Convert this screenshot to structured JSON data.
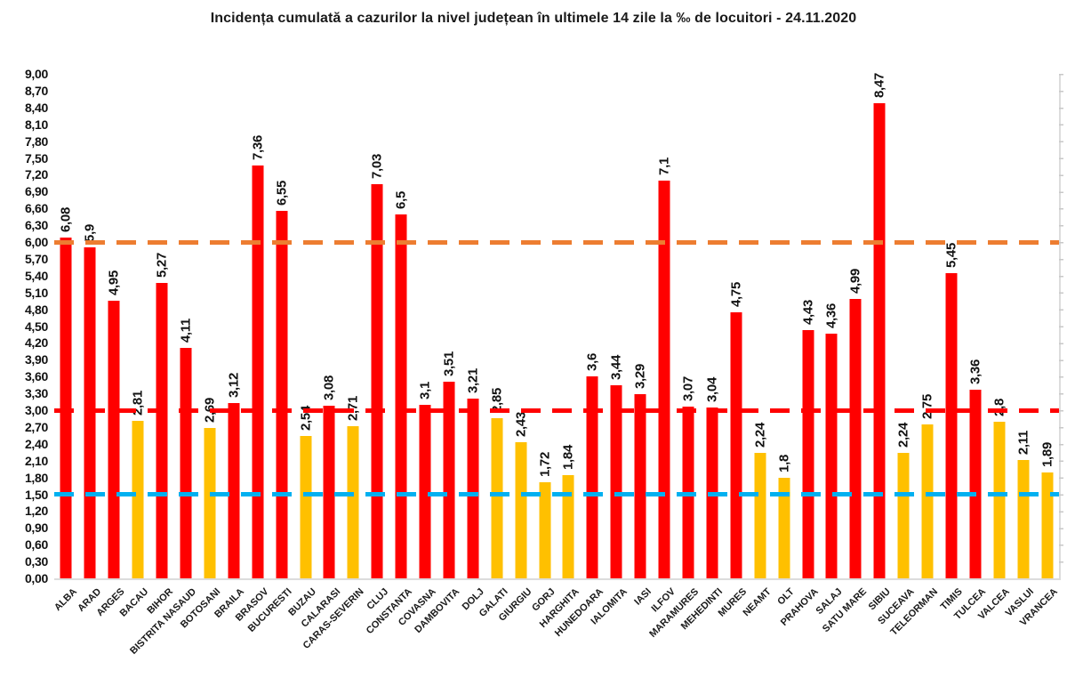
{
  "title": "Incidența cumulată a cazurilor la nivel județean în ultimele 14 zile la ‰ de locuitori - 24.11.2020",
  "chart_data": {
    "type": "bar",
    "title": "Incidența cumulată a cazurilor la nivel județean în ultimele 14 zile la ‰ de locuitori - 24.11.2020",
    "xlabel": "",
    "ylabel": "",
    "ylim": [
      0,
      9
    ],
    "ytick_step": 0.3,
    "yticks": [
      "9,00",
      "8,70",
      "8,40",
      "8,10",
      "7,80",
      "7,50",
      "7,20",
      "6,90",
      "6,60",
      "6,30",
      "6,00",
      "5,70",
      "5,40",
      "5,10",
      "4,80",
      "4,50",
      "4,20",
      "3,90",
      "3,60",
      "3,30",
      "3,00",
      "2,70",
      "2,40",
      "2,10",
      "1,80",
      "1,50",
      "1,20",
      "0,90",
      "0,60",
      "0,30",
      "0,00"
    ],
    "grid": false,
    "legend": false,
    "value_label_rotation": 90,
    "category_label_rotation": 45,
    "colors": {
      "red_zone_bar": "#FF0000",
      "yellow_zone_bar": "#FFC000",
      "threshold_6": "#ED7D31",
      "threshold_3": "#FF0000",
      "threshold_1_5": "#00B0F0",
      "axis_line": "#dcdcdc",
      "text": "#111111"
    },
    "reference_lines": [
      {
        "value": 6.0,
        "color": "#ED7D31",
        "name": "threshold-6"
      },
      {
        "value": 3.0,
        "color": "#FF0000",
        "name": "threshold-3"
      },
      {
        "value": 1.5,
        "color": "#00B0F0",
        "name": "threshold-1.5"
      }
    ],
    "bars": [
      {
        "county": "ALBA",
        "value": 6.08,
        "label": "6,08",
        "zone": "red"
      },
      {
        "county": "ARAD",
        "value": 5.9,
        "label": "5,9",
        "zone": "red"
      },
      {
        "county": "ARGES",
        "value": 4.95,
        "label": "4,95",
        "zone": "red"
      },
      {
        "county": "BACAU",
        "value": 2.81,
        "label": "2,81",
        "zone": "yellow"
      },
      {
        "county": "BIHOR",
        "value": 5.27,
        "label": "5,27",
        "zone": "red"
      },
      {
        "county": "BISTRITA NASAUD",
        "value": 4.11,
        "label": "4,11",
        "zone": "red"
      },
      {
        "county": "BOTOSANI",
        "value": 2.69,
        "label": "2,69",
        "zone": "yellow"
      },
      {
        "county": "BRAILA",
        "value": 3.12,
        "label": "3,12",
        "zone": "red"
      },
      {
        "county": "BRASOV",
        "value": 7.36,
        "label": "7,36",
        "zone": "red"
      },
      {
        "county": "BUCURESTI",
        "value": 6.55,
        "label": "6,55",
        "zone": "red"
      },
      {
        "county": "BUZAU",
        "value": 2.54,
        "label": "2,54",
        "zone": "yellow"
      },
      {
        "county": "CALARASI",
        "value": 3.08,
        "label": "3,08",
        "zone": "red"
      },
      {
        "county": "CARAS-SEVERIN",
        "value": 2.71,
        "label": "2,71",
        "zone": "yellow"
      },
      {
        "county": "CLUJ",
        "value": 7.03,
        "label": "7,03",
        "zone": "red"
      },
      {
        "county": "CONSTANTA",
        "value": 6.5,
        "label": "6,5",
        "zone": "red"
      },
      {
        "county": "COVASNA",
        "value": 3.1,
        "label": "3,1",
        "zone": "red"
      },
      {
        "county": "DAMBOVITA",
        "value": 3.51,
        "label": "3,51",
        "zone": "red"
      },
      {
        "county": "DOLJ",
        "value": 3.21,
        "label": "3,21",
        "zone": "red"
      },
      {
        "county": "GALATI",
        "value": 2.85,
        "label": "2,85",
        "zone": "yellow"
      },
      {
        "county": "GIURGIU",
        "value": 2.43,
        "label": "2,43",
        "zone": "yellow"
      },
      {
        "county": "GORJ",
        "value": 1.72,
        "label": "1,72",
        "zone": "yellow"
      },
      {
        "county": "HARGHITA",
        "value": 1.84,
        "label": "1,84",
        "zone": "yellow"
      },
      {
        "county": "HUNEDOARA",
        "value": 3.6,
        "label": "3,6",
        "zone": "red"
      },
      {
        "county": "IALOMITA",
        "value": 3.44,
        "label": "3,44",
        "zone": "red"
      },
      {
        "county": "IASI",
        "value": 3.29,
        "label": "3,29",
        "zone": "red"
      },
      {
        "county": "ILFOV",
        "value": 7.1,
        "label": "7,1",
        "zone": "red"
      },
      {
        "county": "MARAMURES",
        "value": 3.07,
        "label": "3,07",
        "zone": "red"
      },
      {
        "county": "MEHEDINTI",
        "value": 3.04,
        "label": "3,04",
        "zone": "red"
      },
      {
        "county": "MURES",
        "value": 4.75,
        "label": "4,75",
        "zone": "red"
      },
      {
        "county": "NEAMT",
        "value": 2.24,
        "label": "2,24",
        "zone": "yellow"
      },
      {
        "county": "OLT",
        "value": 1.8,
        "label": "1,8",
        "zone": "yellow"
      },
      {
        "county": "PRAHOVA",
        "value": 4.43,
        "label": "4,43",
        "zone": "red"
      },
      {
        "county": "SALAJ",
        "value": 4.36,
        "label": "4,36",
        "zone": "red"
      },
      {
        "county": "SATU MARE",
        "value": 4.99,
        "label": "4,99",
        "zone": "red"
      },
      {
        "county": "SIBIU",
        "value": 8.47,
        "label": "8,47",
        "zone": "red"
      },
      {
        "county": "SUCEAVA",
        "value": 2.24,
        "label": "2,24",
        "zone": "yellow"
      },
      {
        "county": "TELEORMAN",
        "value": 2.75,
        "label": "2,75",
        "zone": "yellow"
      },
      {
        "county": "TIMIS",
        "value": 5.45,
        "label": "5,45",
        "zone": "red"
      },
      {
        "county": "TULCEA",
        "value": 3.36,
        "label": "3,36",
        "zone": "red"
      },
      {
        "county": "VALCEA",
        "value": 2.8,
        "label": "2,8",
        "zone": "yellow"
      },
      {
        "county": "VASLUI",
        "value": 2.11,
        "label": "2,11",
        "zone": "yellow"
      },
      {
        "county": "VRANCEA",
        "value": 1.89,
        "label": "1,89",
        "zone": "yellow"
      }
    ]
  }
}
